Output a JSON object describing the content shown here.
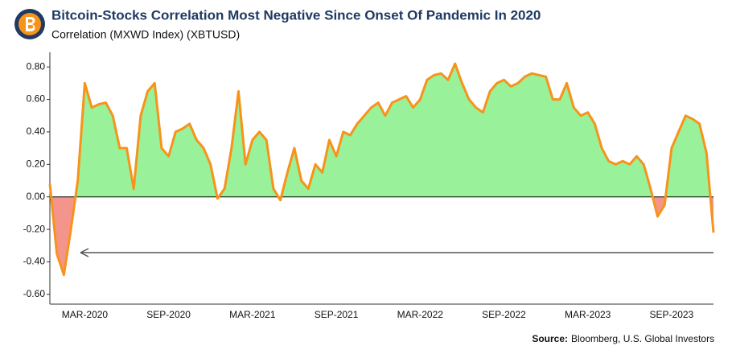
{
  "chart_data": {
    "type": "line",
    "title": "Bitcoin-Stocks Correlation Most Negative Since Onset Of Pandemic In 2020",
    "subtitle": "Correlation (MXWD Index) (XBTUSD)",
    "source": {
      "label": "Source:",
      "text": "Bloomberg, U.S. Global Investors"
    },
    "color": "#f7931a",
    "positive_fill": "#8ef08e",
    "negative_fill": "#f28a7e",
    "categories": [
      null,
      null,
      null,
      null,
      null,
      "MAR-2020",
      null,
      null,
      null,
      null,
      null,
      null,
      null,
      null,
      null,
      null,
      null,
      "SEP-2020",
      null,
      null,
      null,
      null,
      null,
      null,
      null,
      null,
      null,
      null,
      null,
      "MAR-2021",
      null,
      null,
      null,
      null,
      null,
      null,
      null,
      null,
      null,
      null,
      null,
      "SEP-2021",
      null,
      null,
      null,
      null,
      null,
      null,
      null,
      null,
      null,
      null,
      null,
      "MAR-2022",
      null,
      null,
      null,
      null,
      null,
      null,
      null,
      null,
      null,
      null,
      null,
      "SEP-2022",
      null,
      null,
      null,
      null,
      null,
      null,
      null,
      null,
      null,
      null,
      null,
      "MAR-2023",
      null,
      null,
      null,
      null,
      null,
      null,
      null,
      null,
      null,
      null,
      null,
      "SEP-2023",
      null,
      null,
      null,
      null,
      null,
      null
    ],
    "values": [
      0.08,
      -0.35,
      -0.48,
      -0.2,
      0.1,
      0.7,
      0.55,
      0.57,
      0.58,
      0.5,
      0.3,
      0.3,
      0.05,
      0.5,
      0.65,
      0.7,
      0.3,
      0.25,
      0.4,
      0.42,
      0.45,
      0.35,
      0.3,
      0.2,
      -0.01,
      0.05,
      0.3,
      0.65,
      0.2,
      0.35,
      0.4,
      0.35,
      0.05,
      -0.02,
      0.15,
      0.3,
      0.1,
      0.05,
      0.2,
      0.15,
      0.35,
      0.25,
      0.4,
      0.38,
      0.45,
      0.5,
      0.55,
      0.58,
      0.5,
      0.58,
      0.6,
      0.62,
      0.55,
      0.6,
      0.72,
      0.75,
      0.76,
      0.72,
      0.82,
      0.7,
      0.6,
      0.55,
      0.52,
      0.65,
      0.7,
      0.72,
      0.68,
      0.7,
      0.74,
      0.76,
      0.75,
      0.74,
      0.6,
      0.6,
      0.7,
      0.55,
      0.5,
      0.52,
      0.45,
      0.3,
      0.22,
      0.2,
      0.22,
      0.2,
      0.25,
      0.2,
      0.05,
      -0.12,
      -0.05,
      0.3,
      0.4,
      0.5,
      0.48,
      0.45,
      0.27,
      -0.22
    ],
    "ylim": [
      -0.66,
      0.89
    ],
    "yticks": [
      {
        "value": -0.6,
        "label": "-0.60"
      },
      {
        "value": -0.4,
        "label": "-0.40"
      },
      {
        "value": -0.2,
        "label": "-0.20"
      },
      {
        "value": 0,
        "label": "0.00"
      },
      {
        "value": 0.2,
        "label": "0.20"
      },
      {
        "value": 0.4,
        "label": "0.40"
      },
      {
        "value": 0.6,
        "label": "0.60"
      },
      {
        "value": 0.8,
        "label": "0.80"
      }
    ],
    "grid": false
  }
}
